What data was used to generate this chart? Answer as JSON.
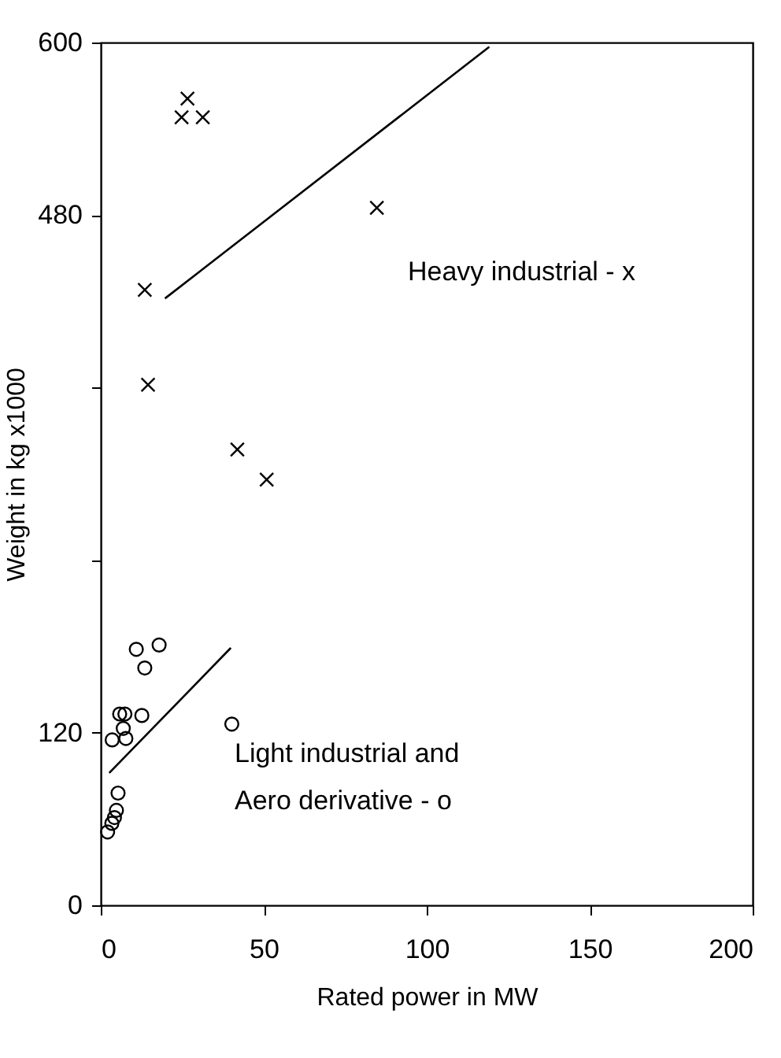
{
  "chart_data": {
    "type": "scatter",
    "xlabel": "Rated power in MW",
    "ylabel": "Weight in kg x1000",
    "xlim": [
      0,
      200
    ],
    "xticks": [
      0,
      50,
      100,
      150,
      200
    ],
    "ylim": [
      0,
      600
    ],
    "yticks": [
      0,
      120,
      {
        "value": 240,
        "label": null
      },
      {
        "value": 360,
        "label": null
      },
      480,
      600
    ],
    "grid": false,
    "series": [
      {
        "name": "Heavy industrial - x",
        "marker": "cross",
        "color": "#000000",
        "x": [
          26.6,
          24.8,
          31.3,
          84.7,
          13.5,
          14.5,
          41.9,
          50.9
        ],
        "values": [
          561,
          548,
          548,
          485,
          428,
          362,
          317,
          296
        ]
      },
      {
        "name": "Light industrial and\nAero derivative - o",
        "marker": "circle",
        "color": "#000000",
        "x": [
          10.9,
          17.9,
          13.5,
          5.8,
          7.4,
          12.6,
          6.9,
          3.5,
          7.7,
          40.2,
          5.3,
          4.8,
          4.2,
          3.4,
          2.1
        ],
        "values": [
          178,
          181,
          165,
          133,
          133,
          132,
          123,
          115,
          116,
          126,
          78,
          66,
          61,
          57,
          51
        ]
      },
      {
        "type": "line",
        "color": "#000000",
        "line_style": "solid",
        "marker": "none",
        "x": [
          19.7,
          119.2
        ],
        "values": [
          422,
          597
        ]
      },
      {
        "type": "line",
        "color": "#000000",
        "line_style": "solid",
        "marker": "none",
        "x": [
          2.6,
          39.9
        ],
        "values": [
          92,
          179
        ]
      }
    ]
  }
}
